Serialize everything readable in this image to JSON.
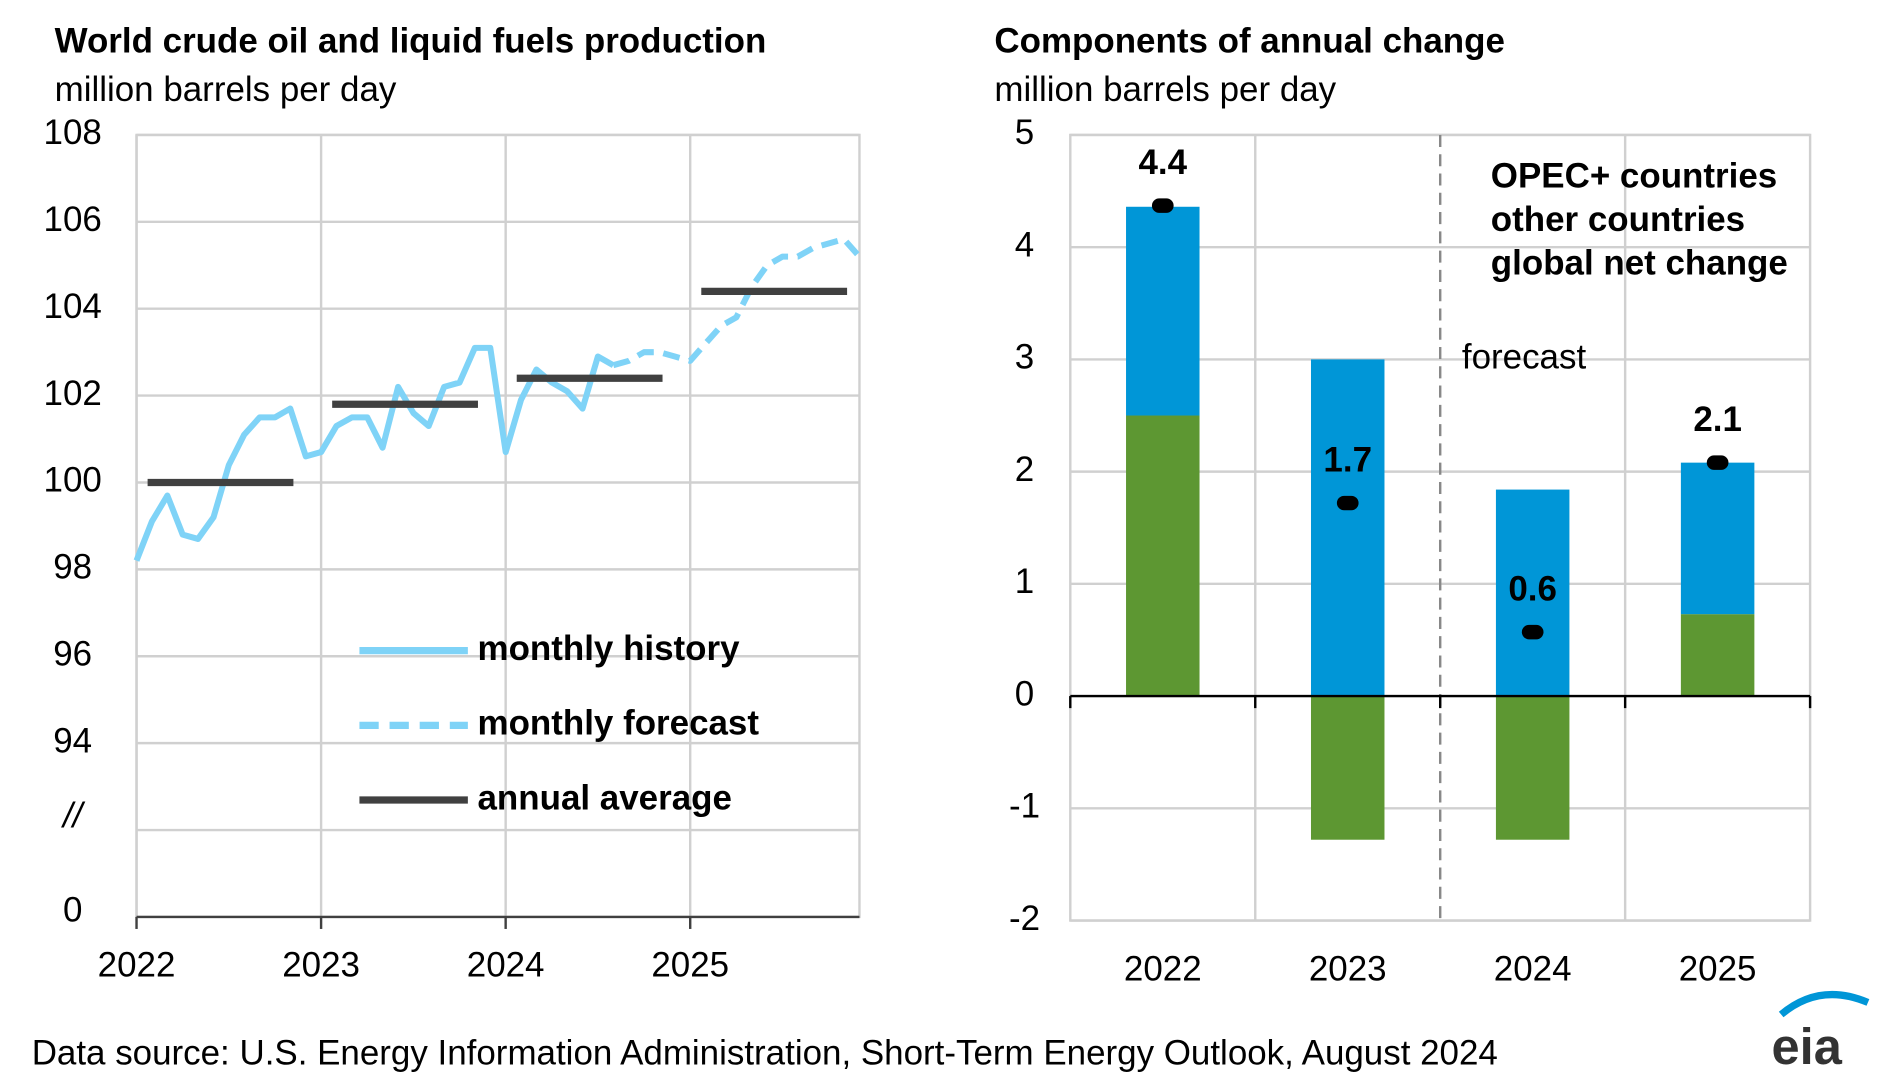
{
  "chart_data": [
    {
      "type": "line",
      "title": "World crude oil and liquid fuels production",
      "subtitle": "million barrels per day",
      "xlim": [
        2022,
        2025.917
      ],
      "xticks": [
        2022,
        2023,
        2024,
        2025
      ],
      "ylim": [
        90,
        108
      ],
      "yticks": [
        94,
        96,
        98,
        100,
        102,
        104,
        106,
        108
      ],
      "axis_break_labels": [
        "//",
        "0"
      ],
      "grid": true,
      "series": [
        {
          "name": "monthly history",
          "color": "#7fd3f7",
          "dash": false,
          "x": [
            2022,
            2022.083,
            2022.167,
            2022.25,
            2022.333,
            2022.417,
            2022.5,
            2022.583,
            2022.667,
            2022.75,
            2022.833,
            2022.917,
            2023,
            2023.083,
            2023.167,
            2023.25,
            2023.333,
            2023.417,
            2023.5,
            2023.583,
            2023.667,
            2023.75,
            2023.833,
            2023.917,
            2024,
            2024.083,
            2024.167,
            2024.25,
            2024.333,
            2024.417,
            2024.5,
            2024.583
          ],
          "values": [
            98.2,
            99.1,
            99.7,
            98.8,
            98.7,
            99.2,
            100.4,
            101.1,
            101.5,
            101.5,
            101.7,
            100.6,
            100.7,
            101.3,
            101.5,
            101.5,
            100.8,
            102.2,
            101.6,
            101.3,
            102.2,
            102.3,
            103.1,
            103.1,
            100.7,
            101.9,
            102.6,
            102.3,
            102.1,
            101.7,
            102.9,
            102.7
          ]
        },
        {
          "name": "monthly forecast",
          "color": "#7fd3f7",
          "dash": true,
          "x": [
            2024.583,
            2024.667,
            2024.75,
            2024.833,
            2024.917,
            2025,
            2025.083,
            2025.167,
            2025.25,
            2025.333,
            2025.417,
            2025.5,
            2025.583,
            2025.667,
            2025.75,
            2025.833,
            2025.917
          ],
          "values": [
            102.7,
            102.8,
            103.0,
            103.0,
            102.9,
            102.8,
            103.2,
            103.6,
            103.8,
            104.5,
            105.0,
            105.2,
            105.2,
            105.4,
            105.5,
            105.6,
            105.2
          ]
        },
        {
          "name": "annual average",
          "color": "#404040",
          "style": "annual",
          "dash": false,
          "x": [
            2022,
            2023,
            2024,
            2025
          ],
          "values": [
            100.0,
            101.8,
            102.4,
            104.4
          ]
        }
      ]
    },
    {
      "type": "bar",
      "stacked": true,
      "title": "Components of annual change",
      "subtitle": "million barrels per day",
      "categories": [
        "2022",
        "2023",
        "2024",
        "2025"
      ],
      "ylim": [
        -2,
        5
      ],
      "yticks": [
        -2,
        -1,
        0,
        1,
        2,
        3,
        4,
        5
      ],
      "grid": true,
      "annotation": "forecast",
      "forecast_start": "2024",
      "series": [
        {
          "name": "OPEC+ countries",
          "color": "#5d9732",
          "values": [
            2.5,
            -1.28,
            -1.28,
            0.73
          ]
        },
        {
          "name": "other countries",
          "color": "#0096d7",
          "values": [
            1.86,
            3.0,
            1.84,
            1.35
          ]
        }
      ],
      "net_change": {
        "name": "global net change",
        "color": "#000000",
        "values": [
          4.37,
          1.72,
          0.57,
          2.08
        ],
        "value_labels": [
          "4.4",
          "1.7",
          "0.6",
          "2.1"
        ]
      }
    }
  ],
  "footer": "Data source: U.S. Energy Information Administration, Short-Term Energy Outlook, August 2024",
  "logo": "eia"
}
